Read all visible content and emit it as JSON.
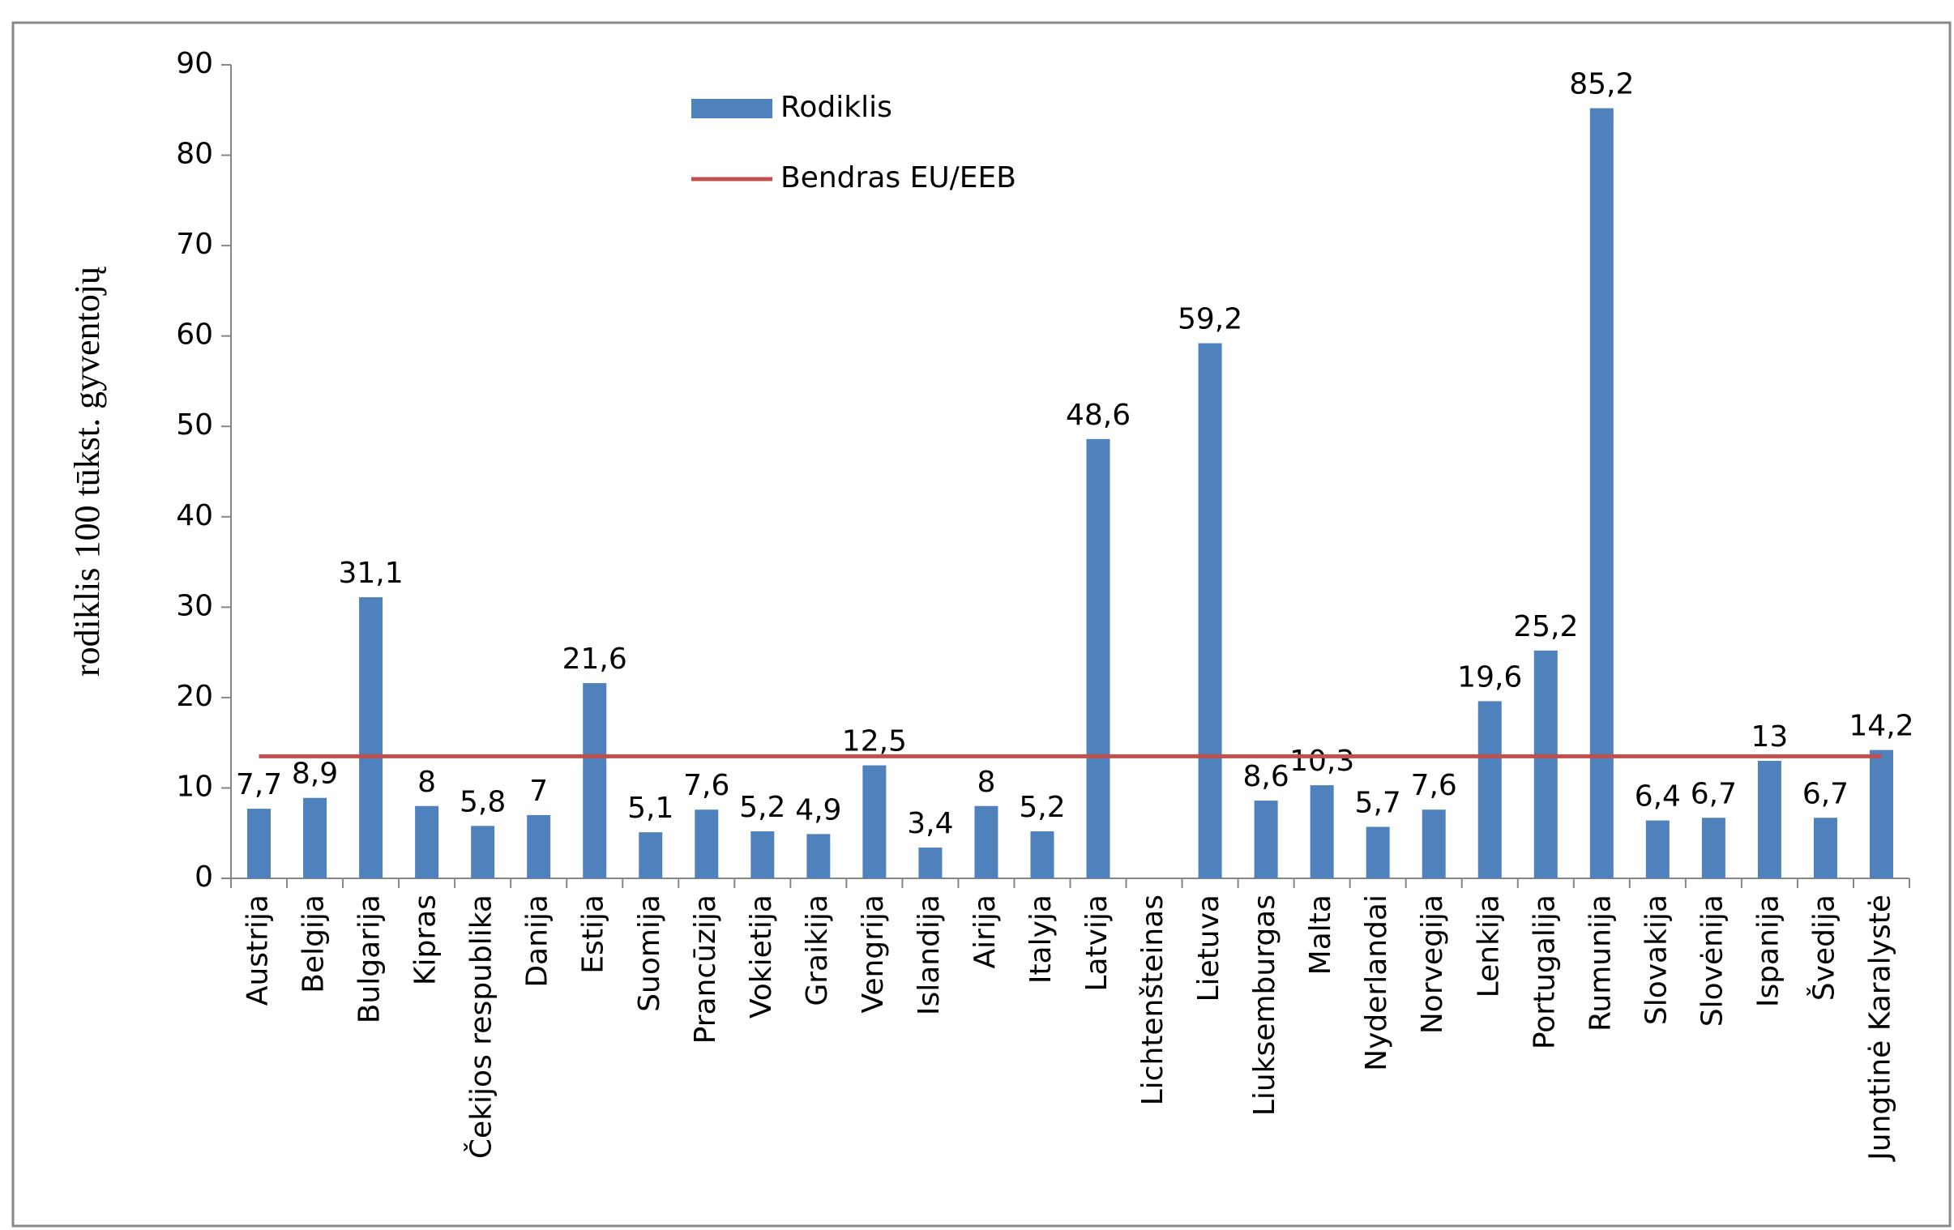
{
  "chart_data": {
    "type": "bar",
    "y_label": "rodiklis 100 tūkst. gyventojų",
    "categories": [
      "Austrija",
      "Belgija",
      "Bulgarija",
      "Kipras",
      "Čekijos respublika",
      "Danija",
      "Estija",
      "Suomija",
      "Prancūzija",
      "Vokietija",
      "Graikija",
      "Vengrija",
      "Islandija",
      "Airija",
      "Italyja",
      "Latvija",
      "Lichtenšteinas",
      "Lietuva",
      "Liuksemburgas",
      "Malta",
      "Nyderlandai",
      "Norvegija",
      "Lenkija",
      "Portugalija",
      "Rumunija",
      "Slovakija",
      "Slovėnija",
      "Ispanija",
      "Švedija",
      "Jungtinė Karalystė"
    ],
    "series": [
      {
        "name": "Rodiklis",
        "type": "bar",
        "color": "#4f81bd",
        "values": [
          7.7,
          8.9,
          31.1,
          8,
          5.8,
          7,
          21.6,
          5.1,
          7.6,
          5.2,
          4.9,
          12.5,
          3.4,
          8,
          5.2,
          48.6,
          null,
          59.2,
          8.6,
          10.3,
          5.7,
          7.6,
          19.6,
          25.2,
          85.2,
          6.4,
          6.7,
          13,
          6.7,
          14.2
        ],
        "value_labels": [
          "7,7",
          "8,9",
          "31,1",
          "8",
          "5,8",
          "7",
          "21,6",
          "5,1",
          "7,6",
          "5,2",
          "4,9",
          "12,5",
          "3,4",
          "8",
          "5,2",
          "48,6",
          null,
          "59,2",
          "8,6",
          "10,3",
          "5,7",
          "7,6",
          "19,6",
          "25,2",
          "85,2",
          "6,4",
          "6,7",
          "13",
          "6,7",
          "14,2"
        ]
      },
      {
        "name": "Bendras EU/EEB",
        "type": "line",
        "color": "#c0504d",
        "values": [
          13.5,
          13.5,
          13.5,
          13.5,
          13.5,
          13.5,
          13.5,
          13.5,
          13.5,
          13.5,
          13.5,
          13.5,
          13.5,
          13.5,
          13.5,
          13.5,
          13.5,
          13.5,
          13.5,
          13.5,
          13.5,
          13.5,
          13.5,
          13.5,
          13.5,
          13.5,
          13.5,
          13.5,
          13.5,
          13.5
        ]
      }
    ],
    "ylim": [
      0,
      90
    ],
    "yticks": [
      0,
      10,
      20,
      30,
      40,
      50,
      60,
      70,
      80,
      90
    ],
    "grid": false
  }
}
